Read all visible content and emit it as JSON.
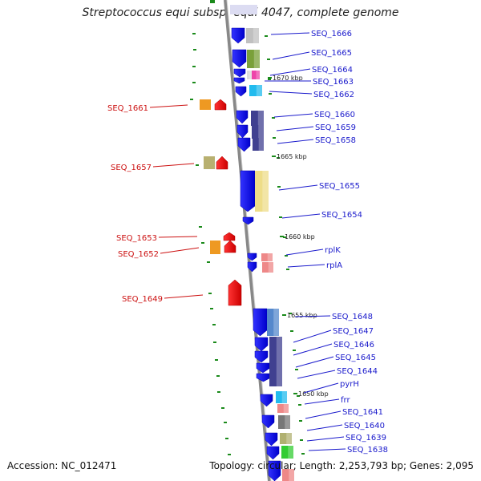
{
  "title": "Streptococcus equi subsp. equi 4047, complete genome",
  "footer": {
    "accession": "Accession: NC_012471",
    "topology": "Topology: circular; Length: 2,253,793 bp; Genes: 2,095"
  },
  "colors": {
    "forward_gene": "#1a1aee",
    "reverse_gene": "#ee1111",
    "backbone": "#999999",
    "tick": "#1a8a1a",
    "forward_label": "#1a1acc",
    "reverse_label": "#cc1111"
  },
  "position_markers": [
    "1670 kbp",
    "1665 kbp",
    "1660 kbp",
    "1655 kbp",
    "1650 kbp"
  ],
  "forward_labels": [
    "SEQ_1666",
    "SEQ_1665",
    "SEQ_1664",
    "SEQ_1663",
    "SEQ_1662",
    "SEQ_1660",
    "SEQ_1659",
    "SEQ_1658",
    "SEQ_1655",
    "SEQ_1654",
    "rplK",
    "rplA",
    "SEQ_1648",
    "SEQ_1647",
    "SEQ_1646",
    "SEQ_1645",
    "SEQ_1644",
    "pyrH",
    "frr",
    "SEQ_1641",
    "SEQ_1640",
    "SEQ_1639",
    "SEQ_1638"
  ],
  "reverse_labels": [
    "SEQ_1661",
    "SEQ_1657",
    "SEQ_1653",
    "SEQ_1652",
    "SEQ_1649"
  ]
}
